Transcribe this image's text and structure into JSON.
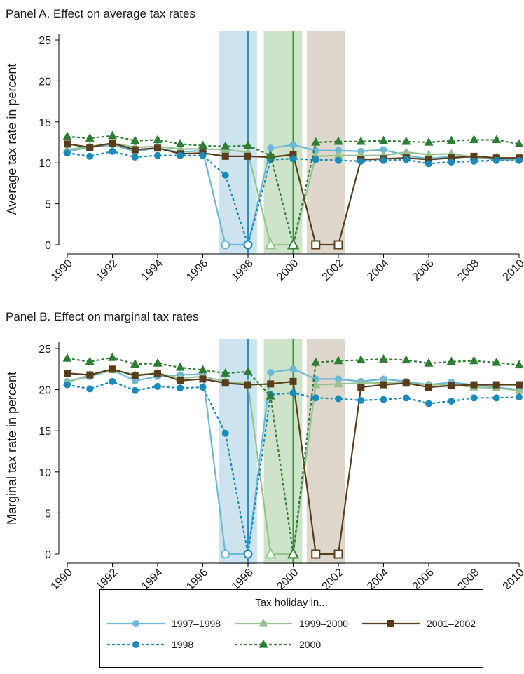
{
  "chart_data": [
    {
      "type": "line",
      "title": "Panel A. Effect on average tax rates",
      "ylabel": "Average tax rate in percent",
      "xlabel": "",
      "xlim": [
        1990,
        2010
      ],
      "ylim": [
        0,
        25
      ],
      "x_ticks": [
        "1990",
        "1992",
        "1994",
        "1996",
        "1998",
        "2000",
        "2002",
        "2004",
        "2006",
        "2008",
        "2010"
      ],
      "y_ticks": [
        "0",
        "5",
        "10",
        "15",
        "20",
        "25"
      ],
      "holiday_bands": [
        {
          "start": 1996.7,
          "end": 1998.4,
          "color": "#cde4f0",
          "line": 1998,
          "line_color": "#2f8fc6"
        },
        {
          "start": 1998.7,
          "end": 2000.4,
          "color": "#cfe3cb",
          "line": 2000,
          "line_color": "#3f8f45"
        },
        {
          "start": 2000.6,
          "end": 2002.3,
          "color": "#ddd7cc"
        }
      ],
      "x": [
        1990,
        1991,
        1992,
        1993,
        1994,
        1995,
        1996,
        1997,
        1998,
        1999,
        2000,
        2001,
        2002,
        2003,
        2004,
        2005,
        2006,
        2007,
        2008,
        2009,
        2010
      ],
      "series": [
        {
          "name": "1997–1998",
          "color": "#6ab7d9",
          "dash": false,
          "marker": "circle",
          "values": [
            11.4,
            11.9,
            12.2,
            11.4,
            11.8,
            11.3,
            11.5,
            0,
            0,
            11.8,
            12.2,
            11.5,
            11.5,
            11.4,
            11.6,
            10.9,
            10.5,
            10.8,
            10.7,
            10.4,
            10.4
          ],
          "hollow": [
            1997,
            1998
          ]
        },
        {
          "name": "1999–2000",
          "color": "#95c28f",
          "dash": false,
          "marker": "triangle",
          "values": [
            11.6,
            12.0,
            12.4,
            11.9,
            12.0,
            11.7,
            11.7,
            11.6,
            11.3,
            0,
            0,
            10.8,
            10.9,
            10.9,
            10.9,
            11.3,
            11.0,
            11.1,
            10.7,
            10.6,
            10.5
          ],
          "hollow": [
            1999,
            2000
          ]
        },
        {
          "name": "2001–2002",
          "color": "#5a3d1a",
          "dash": false,
          "marker": "square",
          "values": [
            12.3,
            11.9,
            12.4,
            11.6,
            11.8,
            11.1,
            11.2,
            10.8,
            10.8,
            10.7,
            11.0,
            0,
            0,
            10.4,
            10.5,
            10.6,
            10.4,
            10.6,
            10.8,
            10.6,
            10.6
          ],
          "hollow": [
            2001,
            2002
          ]
        },
        {
          "name": "1998",
          "color": "#1a8ab8",
          "dash": true,
          "marker": "circle",
          "values": [
            11.2,
            10.8,
            11.4,
            10.7,
            10.9,
            10.9,
            10.9,
            8.5,
            0,
            10.4,
            10.5,
            10.4,
            10.3,
            10.2,
            10.3,
            10.4,
            9.9,
            10.1,
            10.2,
            10.3,
            10.3
          ],
          "hollow": [
            1998
          ]
        },
        {
          "name": "2000",
          "color": "#2e7d34",
          "dash": true,
          "marker": "triangle",
          "values": [
            13.2,
            13.0,
            13.3,
            12.7,
            12.8,
            12.3,
            12.1,
            12.0,
            12.1,
            10.9,
            0,
            12.5,
            12.6,
            12.6,
            12.7,
            12.6,
            12.5,
            12.7,
            12.8,
            12.8,
            12.3
          ],
          "hollow": [
            2000
          ]
        }
      ]
    },
    {
      "type": "line",
      "title": "Panel B. Effect on marginal tax rates",
      "ylabel": "Marginal tax rate in percent",
      "xlabel": "",
      "xlim": [
        1990,
        2010
      ],
      "ylim": [
        0,
        25
      ],
      "x_ticks": [
        "1990",
        "1992",
        "1994",
        "1996",
        "1998",
        "2000",
        "2002",
        "2004",
        "2006",
        "2008",
        "2010"
      ],
      "y_ticks": [
        "0",
        "5",
        "10",
        "15",
        "20",
        "25"
      ],
      "holiday_bands": [
        {
          "start": 1996.7,
          "end": 1998.4,
          "color": "#cde4f0",
          "line": 1998,
          "line_color": "#2f8fc6"
        },
        {
          "start": 1998.7,
          "end": 2000.4,
          "color": "#cfe3cb",
          "line": 2000,
          "line_color": "#3f8f45"
        },
        {
          "start": 2000.6,
          "end": 2002.3,
          "color": "#ddd7cc"
        }
      ],
      "x": [
        1990,
        1991,
        1992,
        1993,
        1994,
        1995,
        1996,
        1997,
        1998,
        1999,
        2000,
        2001,
        2002,
        2003,
        2004,
        2005,
        2006,
        2007,
        2008,
        2009,
        2010
      ],
      "series": [
        {
          "name": "1997–1998",
          "color": "#6ab7d9",
          "dash": false,
          "marker": "circle",
          "values": [
            21.0,
            21.6,
            22.4,
            21.1,
            21.6,
            21.8,
            21.9,
            0,
            0,
            22.1,
            22.5,
            21.3,
            21.3,
            21.0,
            21.3,
            21.0,
            20.6,
            20.9,
            20.6,
            20.3,
            20.0
          ],
          "hollow": [
            1997,
            1998
          ]
        },
        {
          "name": "1999–2000",
          "color": "#95c28f",
          "dash": false,
          "marker": "triangle",
          "values": [
            20.9,
            21.8,
            22.4,
            21.8,
            22.0,
            21.4,
            21.6,
            21.0,
            20.7,
            0,
            0,
            20.6,
            20.7,
            20.8,
            20.8,
            20.8,
            20.6,
            20.6,
            20.3,
            20.2,
            19.9
          ],
          "hollow": [
            1999,
            2000
          ]
        },
        {
          "name": "2001–2002",
          "color": "#5a3d1a",
          "dash": false,
          "marker": "square",
          "values": [
            22.0,
            21.8,
            22.5,
            21.7,
            22.0,
            21.1,
            21.3,
            20.8,
            20.6,
            20.7,
            21.0,
            0,
            0,
            20.3,
            20.6,
            20.8,
            20.3,
            20.5,
            20.6,
            20.6,
            20.6
          ],
          "hollow": [
            2001,
            2002
          ]
        },
        {
          "name": "1998",
          "color": "#1a8ab8",
          "dash": true,
          "marker": "circle",
          "values": [
            20.6,
            20.1,
            21.0,
            19.9,
            20.4,
            20.2,
            20.3,
            14.7,
            0,
            19.4,
            19.6,
            19.0,
            18.9,
            18.7,
            18.8,
            19.0,
            18.3,
            18.6,
            19.0,
            19.0,
            19.1
          ],
          "hollow": [
            1998
          ]
        },
        {
          "name": "2000",
          "color": "#2e7d34",
          "dash": true,
          "marker": "triangle",
          "values": [
            23.8,
            23.4,
            23.9,
            23.1,
            23.2,
            22.7,
            22.4,
            22.0,
            22.2,
            19.2,
            0,
            23.3,
            23.5,
            23.6,
            23.7,
            23.6,
            23.2,
            23.4,
            23.5,
            23.3,
            23.0
          ],
          "hollow": [
            2000
          ]
        }
      ]
    }
  ],
  "legend": {
    "title": "Tax holiday in...",
    "items": [
      {
        "label": "1997–1998",
        "color": "#6ab7d9",
        "dash": false,
        "marker": "circle"
      },
      {
        "label": "1999–2000",
        "color": "#95c28f",
        "dash": false,
        "marker": "triangle"
      },
      {
        "label": "2001–2002",
        "color": "#5a3d1a",
        "dash": false,
        "marker": "square"
      },
      {
        "label": "1998",
        "color": "#1a8ab8",
        "dash": true,
        "marker": "circle"
      },
      {
        "label": "2000",
        "color": "#2e7d34",
        "dash": true,
        "marker": "triangle"
      }
    ]
  }
}
